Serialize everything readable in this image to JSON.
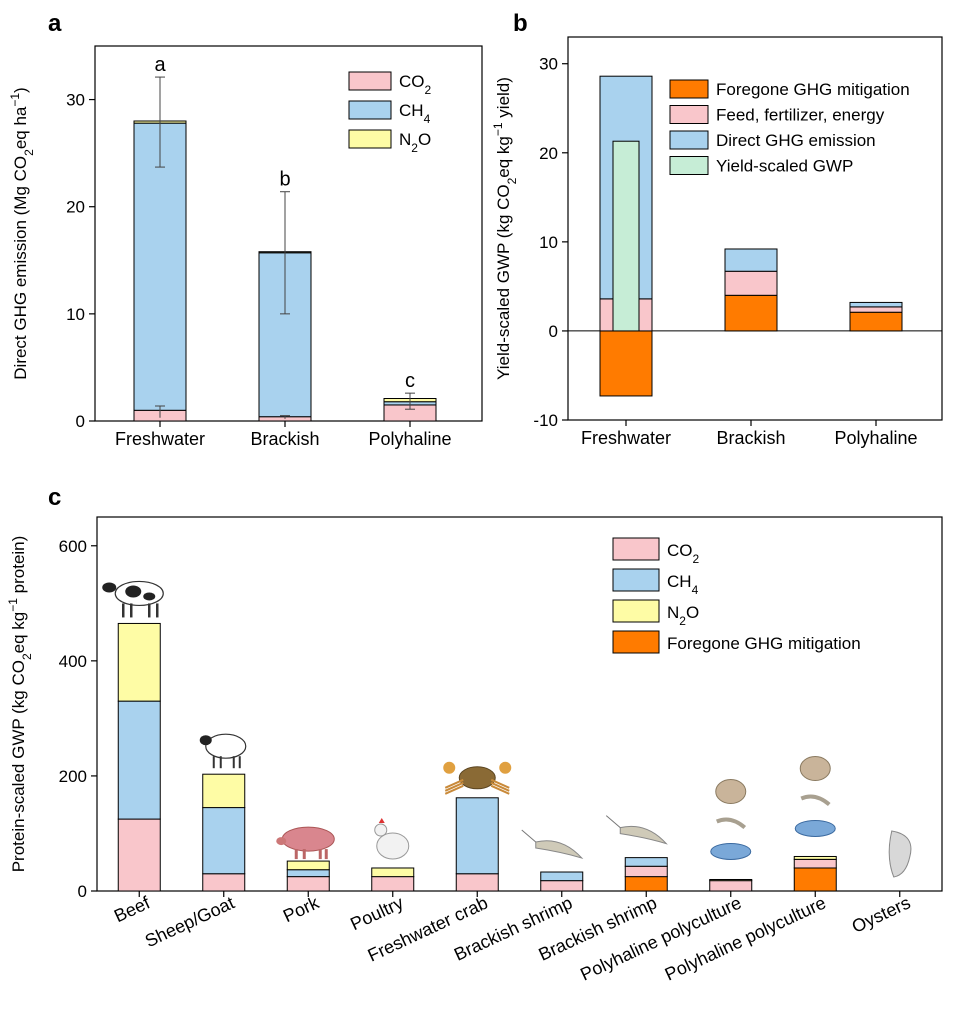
{
  "colors": {
    "co2": "#F9C6CB",
    "ch4": "#A9D2EE",
    "n2o": "#FEFCA5",
    "foregone": "#FF7B00",
    "feed": "#F9C6CB",
    "direct": "#A9D2EE",
    "yieldgwp": "#C6EDD6"
  },
  "panel_a": {
    "label": "a",
    "legend": [
      {
        "key": "co2",
        "base": "CO",
        "sub": "2",
        "post": ""
      },
      {
        "key": "ch4",
        "base": "CH",
        "sub": "4",
        "post": ""
      },
      {
        "key": "n2o",
        "base": "N",
        "sub": "2",
        "post": "O"
      }
    ]
  },
  "panel_b": {
    "label": "b",
    "legend": [
      {
        "key": "foregone",
        "label": "Foregone GHG mitigation"
      },
      {
        "key": "feed",
        "label": "Feed, fertilizer, energy"
      },
      {
        "key": "direct",
        "label": "Direct GHG emission"
      },
      {
        "key": "yieldgwp",
        "label": "Yield-scaled GWP"
      }
    ]
  },
  "panel_c": {
    "label": "c",
    "legend": [
      {
        "key": "co2",
        "base": "CO",
        "sub": "2",
        "post": ""
      },
      {
        "key": "ch4",
        "base": "CH",
        "sub": "4",
        "post": ""
      },
      {
        "key": "n2o",
        "base": "N",
        "sub": "2",
        "post": "O"
      },
      {
        "key": "foregone",
        "base": "Foregone GHG mitigation",
        "sub": "",
        "post": ""
      }
    ],
    "icons": [
      "cow-icon",
      "sheep-icon",
      "pig-icon",
      "chicken-icon",
      "crab-icon",
      "shrimp-icon",
      "shrimp-icon",
      "polyculture-icon",
      "polyculture-icon",
      "oyster-icon"
    ]
  },
  "chart_data": [
    {
      "type": "bar",
      "stacked": true,
      "categories": [
        "Freshwater",
        "Brackish",
        "Polyhaline"
      ],
      "ylabel_parts": [
        "Direct GHG emission (Mg CO",
        "2",
        "eq ha",
        "−1",
        ")"
      ],
      "ylim": [
        0,
        35
      ],
      "yticks": [
        0,
        10,
        20,
        30
      ],
      "legend_position": "top-right",
      "series": [
        {
          "name": "CO2",
          "key": "co2",
          "values": [
            1.0,
            0.4,
            1.5
          ]
        },
        {
          "name": "CH4",
          "key": "ch4",
          "values": [
            26.8,
            15.3,
            0.3
          ]
        },
        {
          "name": "N2O",
          "key": "n2o",
          "values": [
            0.2,
            0.1,
            0.3
          ]
        }
      ],
      "error_bars": {
        "total": {
          "mean": [
            28.0,
            15.8,
            2.1
          ],
          "low": [
            23.7,
            10.0,
            1.1
          ],
          "high": [
            32.1,
            21.4,
            2.6
          ]
        },
        "co2": {
          "mean": [
            1.0,
            0.4,
            null
          ],
          "low": [
            0.3,
            0.2,
            null
          ],
          "high": [
            1.4,
            0.5,
            null
          ]
        }
      },
      "significance": [
        "a",
        "b",
        "c"
      ]
    },
    {
      "type": "bar",
      "categories": [
        "Freshwater",
        "Brackish",
        "Polyhaline"
      ],
      "ylabel_parts": [
        "Yield-scaled GWP  (kg CO",
        "2",
        "eq kg",
        "−1",
        " yield)"
      ],
      "ylim": [
        -10,
        33
      ],
      "yticks": [
        -10,
        0,
        10,
        20,
        30
      ],
      "legend_position": "top-right",
      "series": [
        {
          "name": "Foregone GHG mitigation",
          "key": "foregone",
          "values": [
            -7.3,
            4.0,
            2.1
          ]
        },
        {
          "name": "Feed, fertilizer, energy",
          "key": "feed",
          "values": [
            3.6,
            2.7,
            0.6
          ]
        },
        {
          "name": "Direct GHG emission",
          "key": "direct",
          "values": [
            25.0,
            2.5,
            0.5
          ]
        },
        {
          "name": "Yield-scaled GWP",
          "key": "yieldgwp",
          "values": [
            21.3,
            null,
            null
          ]
        }
      ]
    },
    {
      "type": "bar",
      "stacked": true,
      "categories": [
        "Beef",
        "Sheep/Goat",
        "Pork",
        "Poultry",
        "Freshwater crab",
        "Brackish shrimp",
        "Brackish shrimp",
        "Polyhaline polyculture",
        "Polyhaline polyculture",
        "Oysters"
      ],
      "ylabel_parts": [
        "Protein-scaled GWP (kg CO",
        "2",
        "eq kg",
        "−1",
        " protein)"
      ],
      "ylim": [
        0,
        650
      ],
      "yticks": [
        0,
        200,
        400,
        600
      ],
      "legend_position": "top-right",
      "series": [
        {
          "name": "Foregone GHG mitigation",
          "key": "foregone",
          "values": [
            0,
            0,
            0,
            0,
            0,
            0,
            25,
            0,
            40,
            0
          ]
        },
        {
          "name": "CO2",
          "key": "co2",
          "values": [
            125,
            30,
            25,
            25,
            30,
            18,
            18,
            18,
            15,
            0
          ]
        },
        {
          "name": "CH4",
          "key": "ch4",
          "values": [
            205,
            115,
            12,
            0,
            132,
            15,
            15,
            0,
            0,
            0
          ]
        },
        {
          "name": "N2O",
          "key": "n2o",
          "values": [
            135,
            58,
            15,
            15,
            0,
            0,
            0,
            2,
            5,
            0
          ]
        }
      ]
    }
  ]
}
